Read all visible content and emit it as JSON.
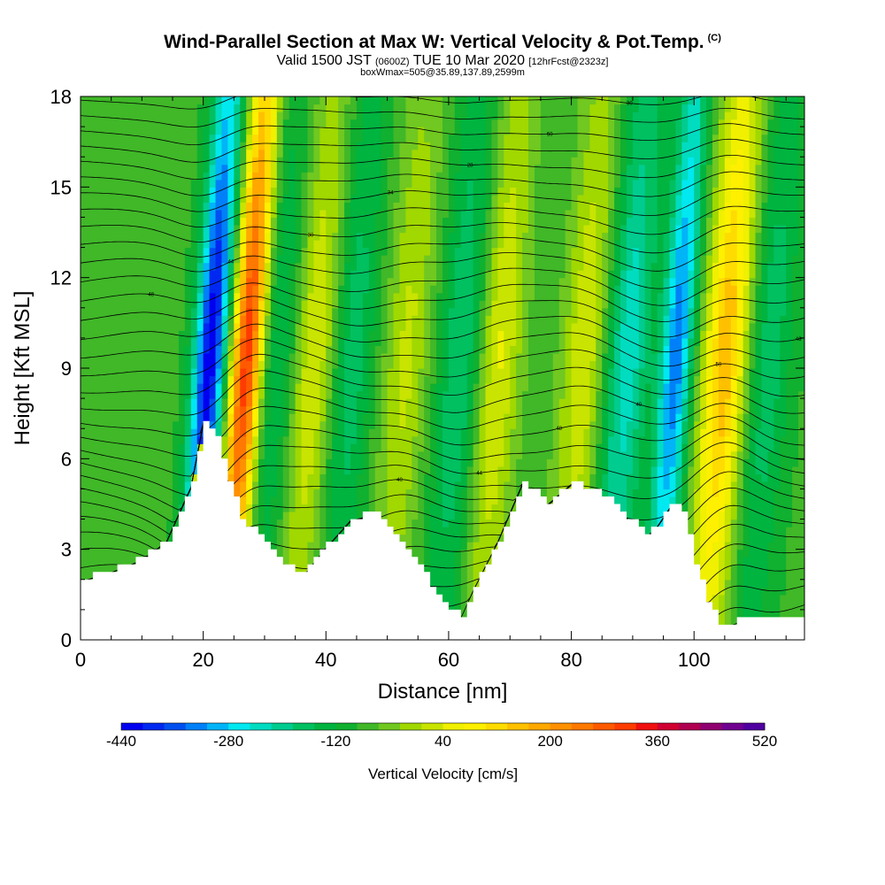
{
  "title": {
    "main": "Wind-Parallel Section at Max W: Vertical Velocity & Pot.Temp.",
    "copyright": "(C)",
    "valid_prefix": "Valid 1500 JST",
    "valid_utc": "(0600Z)",
    "valid_date": "TUE 10 Mar 2020",
    "forecast": "[12hrFcst@2323z]",
    "box_info": "boxWmax=505@35.89,137.89,2599m"
  },
  "chart_data": {
    "type": "heatmap",
    "title": "Wind-Parallel Section at Max W: Vertical Velocity & Pot.Temp.",
    "xlabel": "Distance [nm]",
    "ylabel": "Height [Kft MSL]",
    "xlim": [
      0,
      118
    ],
    "ylim": [
      0,
      18
    ],
    "x_ticks": [
      0,
      20,
      40,
      60,
      80,
      100
    ],
    "y_ticks": [
      0,
      3,
      6,
      9,
      12,
      15,
      18
    ],
    "color_variable": "Vertical Velocity [cm/s]",
    "colorbar_ticks": [
      -440,
      -280,
      -120,
      40,
      200,
      360,
      520
    ],
    "colorbar_range": [
      -440,
      520
    ],
    "colorbar_step": 40,
    "colorbar_colors": [
      "#0000f0",
      "#0028f0",
      "#0050f0",
      "#0080f8",
      "#00b4f8",
      "#00e8f0",
      "#00dcc0",
      "#00cc90",
      "#00c060",
      "#00b440",
      "#10b030",
      "#40b828",
      "#70c820",
      "#a0d800",
      "#c8e400",
      "#f0f000",
      "#fff000",
      "#ffdc00",
      "#ffc000",
      "#ffa800",
      "#ff9000",
      "#ff7800",
      "#ff5a00",
      "#ff3c00",
      "#f01010",
      "#d00030",
      "#b00050",
      "#900070",
      "#700090",
      "#5000a0"
    ],
    "terrain_height_kft": {
      "x": [
        0,
        5,
        10,
        14,
        18,
        20,
        22,
        24,
        26,
        28,
        32,
        36,
        40,
        44,
        48,
        52,
        56,
        58,
        60,
        62,
        64,
        68,
        72,
        76,
        80,
        84,
        88,
        92,
        94,
        96,
        98,
        100,
        102,
        104,
        108,
        112,
        118
      ],
      "y": [
        1.9,
        2.2,
        2.6,
        3.2,
        5.0,
        7.1,
        6.5,
        5.2,
        3.8,
        3.6,
        2.6,
        2.0,
        3.0,
        3.9,
        4.1,
        3.2,
        2.0,
        1.3,
        0.9,
        0.7,
        1.6,
        3.2,
        5.1,
        4.4,
        5.1,
        4.8,
        4.2,
        3.3,
        3.7,
        4.3,
        4.2,
        2.4,
        1.2,
        0.3,
        0.6,
        0.7,
        0.7
      ]
    },
    "vertical_velocity_features": [
      {
        "type": "updraft",
        "x": 27,
        "max": 505
      },
      {
        "type": "updraft",
        "x": 105,
        "max": 300
      },
      {
        "type": "updraft",
        "x": 38,
        "max": 160
      },
      {
        "type": "updraft",
        "x": 53,
        "max": 120
      },
      {
        "type": "updraft",
        "x": 68,
        "max": 160
      },
      {
        "type": "updraft",
        "x": 82,
        "max": 150
      },
      {
        "type": "downdraft",
        "x": 21,
        "max": -440
      },
      {
        "type": "downdraft",
        "x": 97,
        "max": -320
      },
      {
        "type": "downdraft",
        "x": 32,
        "max": -100
      },
      {
        "type": "downdraft",
        "x": 44,
        "max": -120
      },
      {
        "type": "downdraft",
        "x": 62,
        "max": -140
      },
      {
        "type": "downdraft",
        "x": 89,
        "max": -200
      },
      {
        "type": "downdraft",
        "x": 112,
        "max": -120
      }
    ],
    "potential_temperature_contour_labels": [
      "40",
      "44",
      "48",
      "40",
      "50",
      "46",
      "48",
      "44",
      "30",
      "34",
      "28",
      "50",
      "30",
      "26",
      "34",
      "48",
      "30",
      "44",
      "40",
      "36",
      "38",
      "30",
      "22",
      "28",
      "46",
      "40",
      "48",
      "42",
      "30",
      "25"
    ]
  }
}
